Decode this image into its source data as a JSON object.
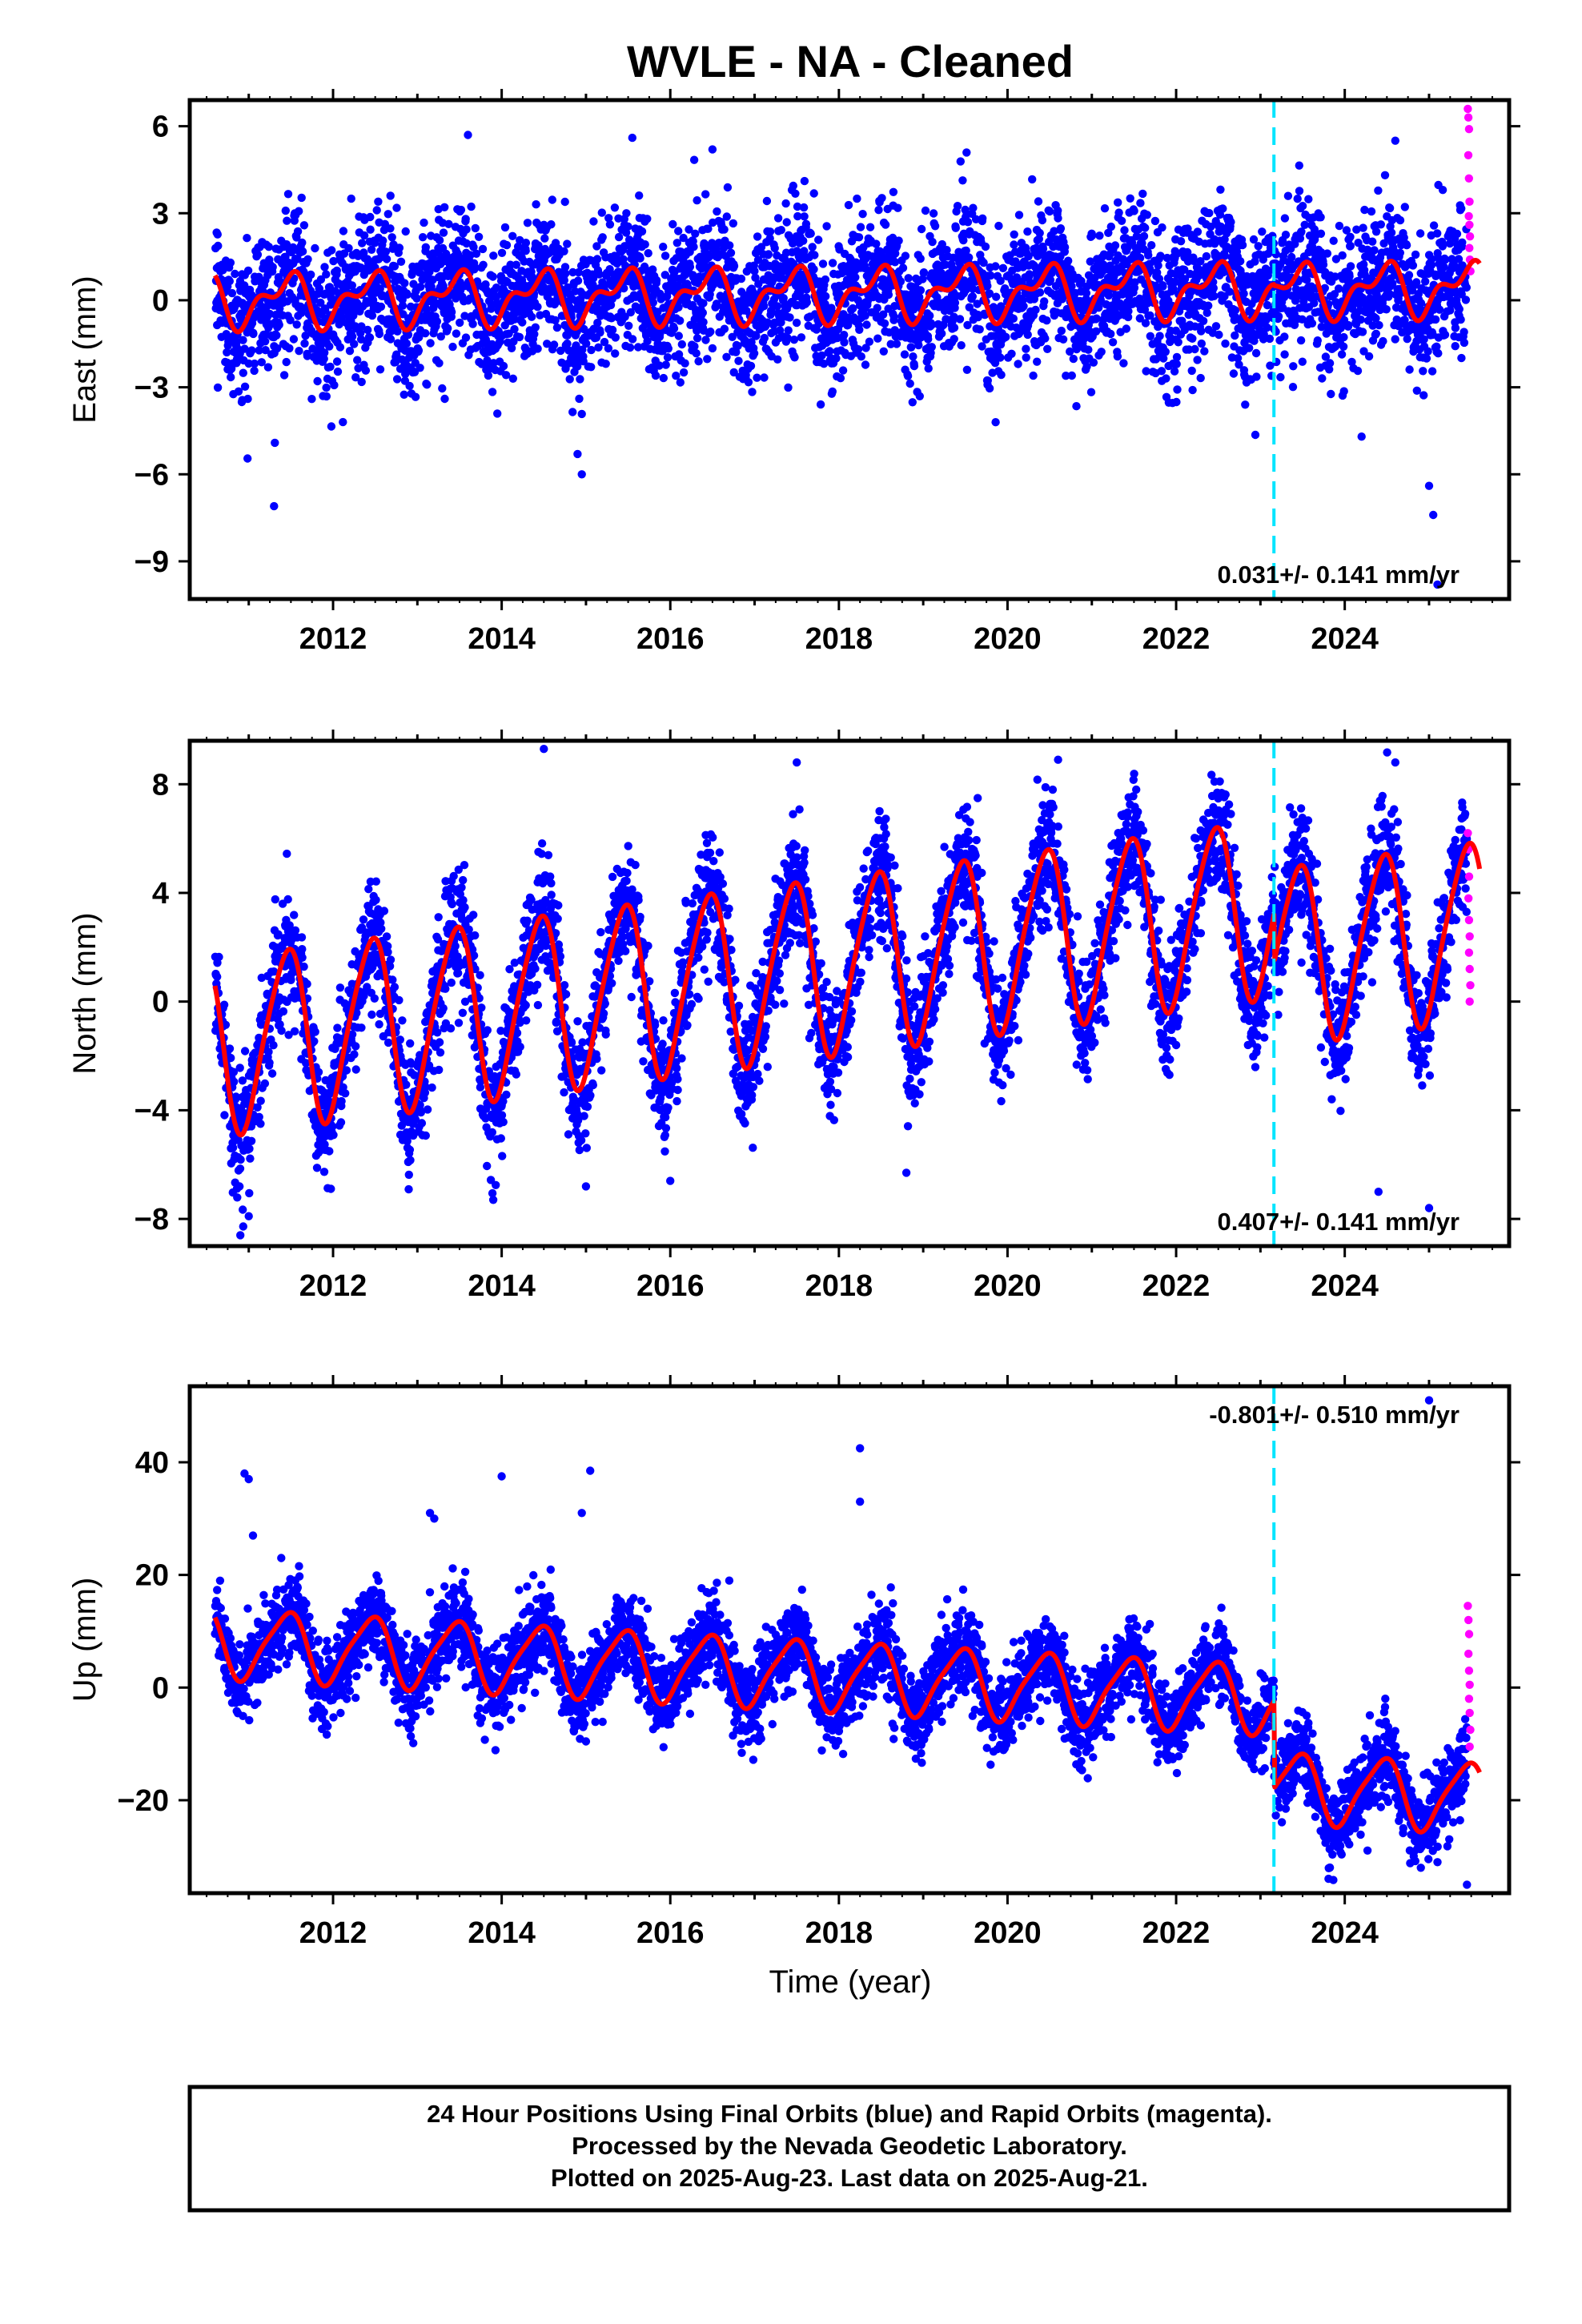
{
  "title": "WVLE  - NA - Cleaned",
  "xlabel": "Time (year)",
  "footer": {
    "lines": [
      "24 Hour Positions Using Final Orbits (blue) and Rapid Orbits (magenta).",
      "Processed by the Nevada Geodetic Laboratory.",
      "Plotted on 2025-Aug-23. Last data on 2025-Aug-21."
    ]
  },
  "colors": {
    "final_orbits": "#0000ff",
    "rapid_orbits": "#ff00ff",
    "model_fit": "#ff0000",
    "offset_line": "#00e5ff",
    "frame": "#000000"
  },
  "chart_data": [
    {
      "type": "scatter",
      "component": "east",
      "ylabel": "East (mm)",
      "xlim": [
        2010.3,
        2025.95
      ],
      "ylim": [
        -10.3,
        6.9
      ],
      "yticks": [
        6,
        3,
        0,
        -3,
        -6,
        -9
      ],
      "ytick_labels": [
        "6",
        "3",
        "0",
        "−3",
        "−6",
        "−9"
      ],
      "xticks": [
        2012,
        2014,
        2016,
        2018,
        2020,
        2022,
        2024
      ],
      "xtick_labels": [
        "2012",
        "2014",
        "2016",
        "2018",
        "2020",
        "2022",
        "2024"
      ],
      "rate_text": "0.031+/- 0.141 mm/yr",
      "rate_position": "bottom-right",
      "offset_epoch": 2023.16,
      "data_span": [
        2010.6,
        2025.45
      ],
      "rapid_span": [
        2025.46,
        2025.64
      ],
      "model": {
        "mean_before": 0.0,
        "mean_after": 0.0,
        "trend_per_yr": 0.031,
        "annual_amp": 0.75,
        "semiannual_amp": 0.45,
        "offset": -0.05
      },
      "scatter_sd": 1.2,
      "rapid_values": [
        6.6,
        6.3,
        5.9,
        5.0,
        4.2,
        3.4,
        2.9,
        2.6,
        2.2,
        1.8,
        1.4,
        1.0
      ],
      "outliers": [
        [
          2011.3,
          -7.1
        ],
        [
          2014.9,
          -5.3
        ],
        [
          2014.95,
          -6.0
        ],
        [
          2024.2,
          -4.7
        ],
        [
          2025.0,
          -6.4
        ],
        [
          2025.05,
          -7.4
        ],
        [
          2025.1,
          -9.8
        ],
        [
          2013.6,
          5.7
        ],
        [
          2016.5,
          5.2
        ],
        [
          2024.6,
          5.5
        ],
        [
          2015.55,
          5.6
        ]
      ]
    },
    {
      "type": "scatter",
      "component": "north",
      "ylabel": "North (mm)",
      "xlim": [
        2010.3,
        2025.95
      ],
      "ylim": [
        -9.0,
        9.6
      ],
      "yticks": [
        8,
        4,
        0,
        -4,
        -8
      ],
      "ytick_labels": [
        "8",
        "4",
        "0",
        "−4",
        "−8"
      ],
      "xticks": [
        2012,
        2014,
        2016,
        2018,
        2020,
        2022,
        2024
      ],
      "xtick_labels": [
        "2012",
        "2014",
        "2016",
        "2018",
        "2020",
        "2022",
        "2024"
      ],
      "rate_text": "0.407+/- 0.141 mm/yr",
      "rate_position": "bottom-right",
      "offset_epoch": 2023.16,
      "data_span": [
        2010.6,
        2025.45
      ],
      "rapid_span": [
        2025.46,
        2025.64
      ],
      "model": {
        "mean_before": -1.6,
        "mean_after": -2.0,
        "trend_per_yr": 0.407,
        "annual_amp": 3.2,
        "semiannual_amp": 0.45,
        "offset": -1.8
      },
      "scatter_sd": 1.1,
      "rapid_values": [
        6.2,
        5.6,
        4.6,
        3.8,
        3.0,
        2.4,
        1.8,
        1.2,
        0.6,
        0.0
      ],
      "outliers": [
        [
          2010.9,
          -8.6
        ],
        [
          2011.0,
          -7.9
        ],
        [
          2014.5,
          9.3
        ],
        [
          2013.9,
          -7.3
        ],
        [
          2015.0,
          -6.8
        ],
        [
          2016.0,
          -6.6
        ],
        [
          2018.8,
          -6.3
        ],
        [
          2024.4,
          -7.0
        ],
        [
          2025.0,
          -7.6
        ],
        [
          2024.6,
          8.8
        ],
        [
          2020.6,
          8.9
        ],
        [
          2017.5,
          8.8
        ]
      ]
    },
    {
      "type": "scatter",
      "component": "up",
      "ylabel": "Up (mm)",
      "xlim": [
        2010.3,
        2025.95
      ],
      "ylim": [
        -36.5,
        53.5
      ],
      "yticks": [
        40,
        20,
        0,
        -20
      ],
      "ytick_labels": [
        "40",
        "20",
        "0",
        "−20"
      ],
      "xticks": [
        2012,
        2014,
        2016,
        2018,
        2020,
        2022,
        2024
      ],
      "xtick_labels": [
        "2012",
        "2014",
        "2016",
        "2018",
        "2020",
        "2022",
        "2024"
      ],
      "rate_text": "-0.801+/- 0.510 mm/yr",
      "rate_position": "top-right",
      "offset_epoch": 2023.16,
      "data_span": [
        2010.6,
        2025.45
      ],
      "rapid_span": [
        2025.46,
        2025.64
      ],
      "model": {
        "mean_before": 8.0,
        "mean_after": 9.0,
        "trend_per_yr": -0.801,
        "annual_amp": 6.0,
        "semiannual_amp": 1.2,
        "offset": -15.5
      },
      "scatter_sd": 3.6,
      "rapid_values": [
        14.5,
        12.0,
        9.5,
        6.0,
        3.0,
        0.5,
        -2.0,
        -4.5,
        -7.5,
        -10.5
      ],
      "outliers": [
        [
          2010.95,
          38.0
        ],
        [
          2011.0,
          37.0
        ],
        [
          2011.05,
          27.0
        ],
        [
          2013.15,
          31.0
        ],
        [
          2013.2,
          30.0
        ],
        [
          2014.0,
          37.5
        ],
        [
          2014.95,
          31.0
        ],
        [
          2015.05,
          38.5
        ],
        [
          2018.25,
          42.5
        ],
        [
          2018.25,
          33.0
        ],
        [
          2016.7,
          19.0
        ],
        [
          2025.0,
          51.0
        ],
        [
          2025.45,
          -35.0
        ],
        [
          2025.1,
          -31.0
        ]
      ]
    }
  ]
}
